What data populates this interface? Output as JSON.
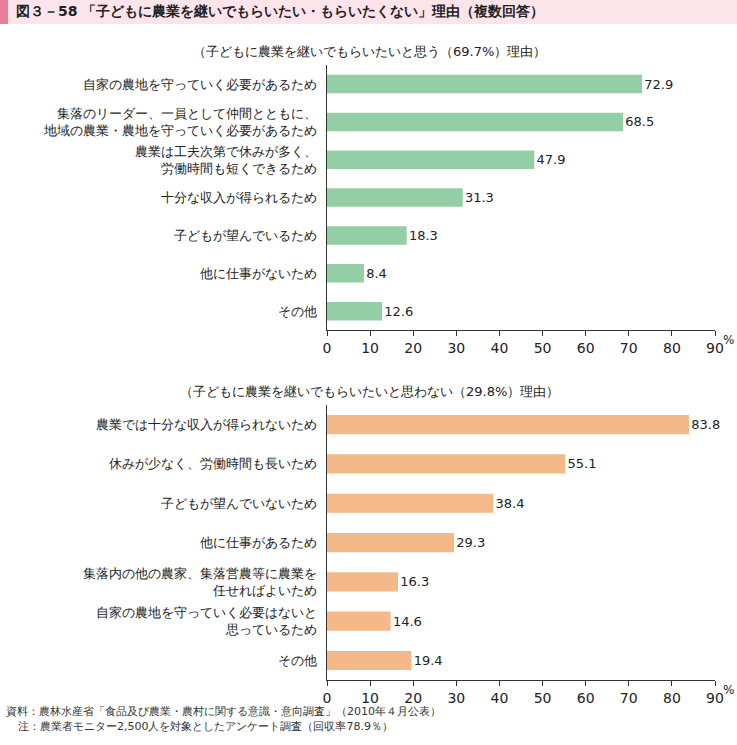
{
  "figure_title": "図３－58 「子どもに農業を継いでもらいたい・もらいたくない」理由（複数回答）",
  "notes": [
    "資料：農林水産省「食品及び農業・農村に関する意識・意向調査」（2010年４月公表）",
    "注：農業者モニター2,500人を対象としたアンケート調査（回収率78.9％）"
  ],
  "chart_data": [
    {
      "type": "bar",
      "orientation": "horizontal",
      "title": "（子どもに農業を継いでもらいたいと思う（69.7%）理由）",
      "categories": [
        "自家の農地を守っていく必要があるため",
        "集落のリーダー、一員として仲間とともに、\n地域の農業・農地を守っていく必要があるため",
        "農業は工夫次第で休みが多く、\n労働時間も短くできるため",
        "十分な収入が得られるため",
        "子どもが望んでいるため",
        "他に仕事がないため",
        "その他"
      ],
      "values": [
        72.9,
        68.5,
        47.9,
        31.3,
        18.3,
        8.4,
        12.6
      ],
      "color": "#4caf6a",
      "x_label": "%",
      "xlim": [
        0,
        90
      ],
      "xticks": [
        0,
        10,
        20,
        30,
        40,
        50,
        60,
        70,
        80,
        90
      ],
      "grid": false,
      "data_labels": true
    },
    {
      "type": "bar",
      "orientation": "horizontal",
      "title": "（子どもに農業を継いでもらいたいと思わない（29.8%）理由）",
      "categories": [
        "農業では十分な収入が得られないため",
        "休みが少なく、労働時間も長いため",
        "子どもが望んでいないため",
        "他に仕事があるため",
        "集落内の他の農家、集落営農等に農業を\n任せればよいため",
        "自家の農地を守っていく必要はないと\n思っているため",
        "その他"
      ],
      "values": [
        83.8,
        55.1,
        38.4,
        29.3,
        16.3,
        14.6,
        19.4
      ],
      "color": "#f08a3c",
      "x_label": "%",
      "xlim": [
        0,
        90
      ],
      "xticks": [
        0,
        10,
        20,
        30,
        40,
        50,
        60,
        70,
        80,
        90
      ],
      "grid": false,
      "data_labels": true
    }
  ]
}
